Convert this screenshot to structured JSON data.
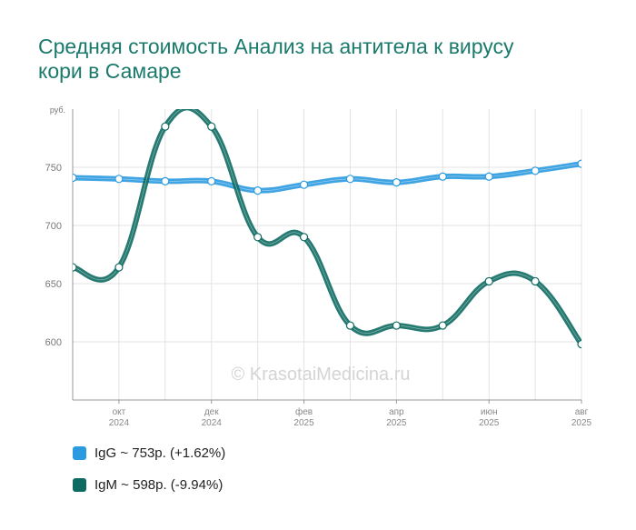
{
  "title": "Средняя стоимость Анализ на антитела к вирусу кори в Самаре",
  "watermark": "© KrasotaiMedicina.ru",
  "chart_data": {
    "type": "line",
    "title": "Средняя стоимость Анализ на антитела к вирусу кори в Самаре",
    "ylabel": "руб.",
    "ylim": [
      550,
      800
    ],
    "yticks": [
      600,
      650,
      700,
      750
    ],
    "x": [
      "2024-09",
      "2024-10",
      "2024-11",
      "2024-12",
      "2025-01",
      "2025-02",
      "2025-03",
      "2025-04",
      "2025-05",
      "2025-06",
      "2025-07",
      "2025-08"
    ],
    "xtick_labels": [
      {
        "x": "2024-10",
        "month": "окт",
        "year": "2024"
      },
      {
        "x": "2024-12",
        "month": "дек",
        "year": "2024"
      },
      {
        "x": "2025-02",
        "month": "фев",
        "year": "2025"
      },
      {
        "x": "2025-04",
        "month": "апр",
        "year": "2025"
      },
      {
        "x": "2025-06",
        "month": "июн",
        "year": "2025"
      },
      {
        "x": "2025-08",
        "month": "авг",
        "year": "2025"
      }
    ],
    "grid": true,
    "legend_position": "bottom-left",
    "series": [
      {
        "name": "IgG",
        "color": "#2b9ae0",
        "values": [
          741,
          740,
          738,
          738,
          730,
          735,
          740,
          737,
          742,
          742,
          747,
          753
        ]
      },
      {
        "name": "IgM",
        "color": "#0e6b62",
        "values": [
          664,
          664,
          785,
          785,
          690,
          690,
          614,
          614,
          614,
          652,
          652,
          598
        ]
      }
    ]
  },
  "legend": [
    {
      "label": "IgG ~ 753р. (+1.62%)",
      "color": "#2b9ae0"
    },
    {
      "label": "IgM ~ 598р. (-9.94%)",
      "color": "#0e6b62"
    }
  ]
}
